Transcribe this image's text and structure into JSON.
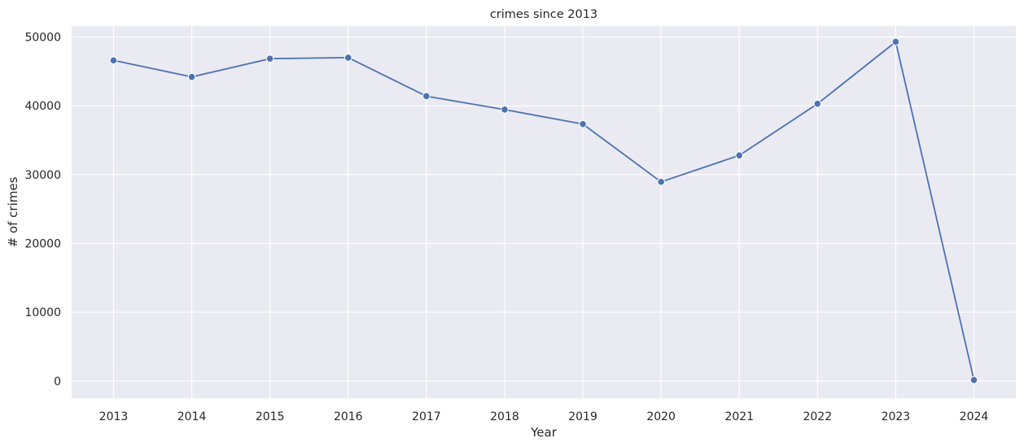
{
  "chart_data": {
    "type": "line",
    "title": "crimes since 2013",
    "xlabel": "Year",
    "ylabel": "# of crimes",
    "x": [
      "2013",
      "2014",
      "2015",
      "2016",
      "2017",
      "2018",
      "2019",
      "2020",
      "2021",
      "2022",
      "2023",
      "2024"
    ],
    "series": [
      {
        "values": [
          46600,
          44200,
          46850,
          47000,
          41400,
          39450,
          37350,
          28950,
          32800,
          40300,
          49300,
          150
        ],
        "color": "#4c72b0",
        "marker": "circle"
      }
    ],
    "ylim": [
      -2500,
      51600
    ],
    "yticks": [
      0,
      10000,
      20000,
      30000,
      40000,
      50000
    ],
    "grid": true,
    "background": "#eaeaf2",
    "grid_color": "#ffffff"
  }
}
